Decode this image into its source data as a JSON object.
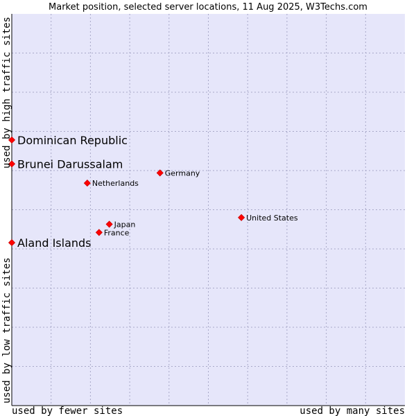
{
  "chart_data": {
    "type": "scatter",
    "title": "Market position, selected server locations, 11 Aug 2025, W3Techs.com",
    "xlabel_left": "used by fewer sites",
    "xlabel_right": "used by many sites",
    "ylabel_bottom": "used by low traffic sites",
    "ylabel_top": "used by high traffic sites",
    "xlim": [
      0,
      100
    ],
    "ylim": [
      0,
      100
    ],
    "grid": true,
    "colors": {
      "plot_bg": "#e6e6fa",
      "marker": "#ff0000",
      "marker_border": "#cc0000",
      "axis": "#000000"
    },
    "points": [
      {
        "label": "Dominican Republic",
        "x": 0,
        "y": 67.8,
        "emphasis": true
      },
      {
        "label": "Brunei Darussalam",
        "x": 0,
        "y": 61.7,
        "emphasis": true
      },
      {
        "label": "Germany",
        "x": 37.7,
        "y": 59.4,
        "emphasis": false
      },
      {
        "label": "Netherlands",
        "x": 19.2,
        "y": 56.8,
        "emphasis": false
      },
      {
        "label": "United States",
        "x": 58.4,
        "y": 48.0,
        "emphasis": false
      },
      {
        "label": "Japan",
        "x": 24.8,
        "y": 46.3,
        "emphasis": false
      },
      {
        "label": "France",
        "x": 22.2,
        "y": 44.2,
        "emphasis": false
      },
      {
        "label": "Aland Islands",
        "x": 0,
        "y": 41.6,
        "emphasis": true
      }
    ]
  }
}
